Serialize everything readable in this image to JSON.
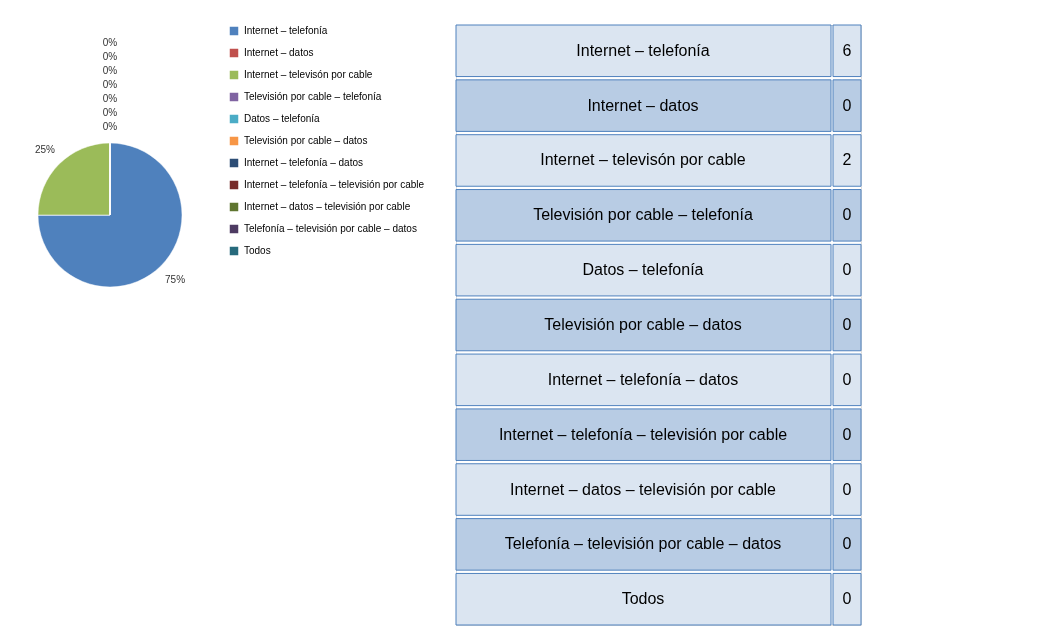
{
  "chart_data": [
    {
      "type": "pie",
      "categories": [
        "Internet – telefonía",
        "Internet – datos",
        "Internet – televisón por cable",
        "Televisión por cable – telefonía",
        "Datos – telefonía",
        "Televisión por cable – datos",
        "Internet – telefonía – datos",
        "Internet – telefonía – televisión por cable",
        "Internet – datos – televisión por cable",
        "Telefonía – televisión por cable – datos",
        "Todos"
      ],
      "values": [
        75,
        0,
        25,
        0,
        0,
        0,
        0,
        0,
        0,
        0,
        0
      ],
      "value_labels": [
        "75%",
        "0%",
        "25%",
        "0%",
        "0%",
        "0%",
        "0%",
        "0%",
        "0%",
        null,
        null
      ],
      "colors": [
        "#4f81bd",
        "#c0504d",
        "#9bbb59",
        "#8064a2",
        "#4bacc6",
        "#f79646",
        "#2c4d75",
        "#772c2a",
        "#5f7530",
        "#4d3b62",
        "#276a7c"
      ],
      "legend": "right"
    },
    {
      "type": "other",
      "categories": [
        "Internet – telefonía",
        "Internet – datos",
        "Internet – televisón por cable",
        "Televisión por cable – telefonía",
        "Datos – telefonía",
        "Televisión por cable – datos",
        "Internet – telefonía – datos",
        "Internet – telefonía – televisión por cable",
        "Internet – datos – televisión por cable",
        "Telefonía – televisión por cable – datos",
        "Todos"
      ],
      "values": [
        6,
        0,
        2,
        0,
        0,
        0,
        0,
        0,
        0,
        0,
        0
      ],
      "data_labels": true
    }
  ]
}
